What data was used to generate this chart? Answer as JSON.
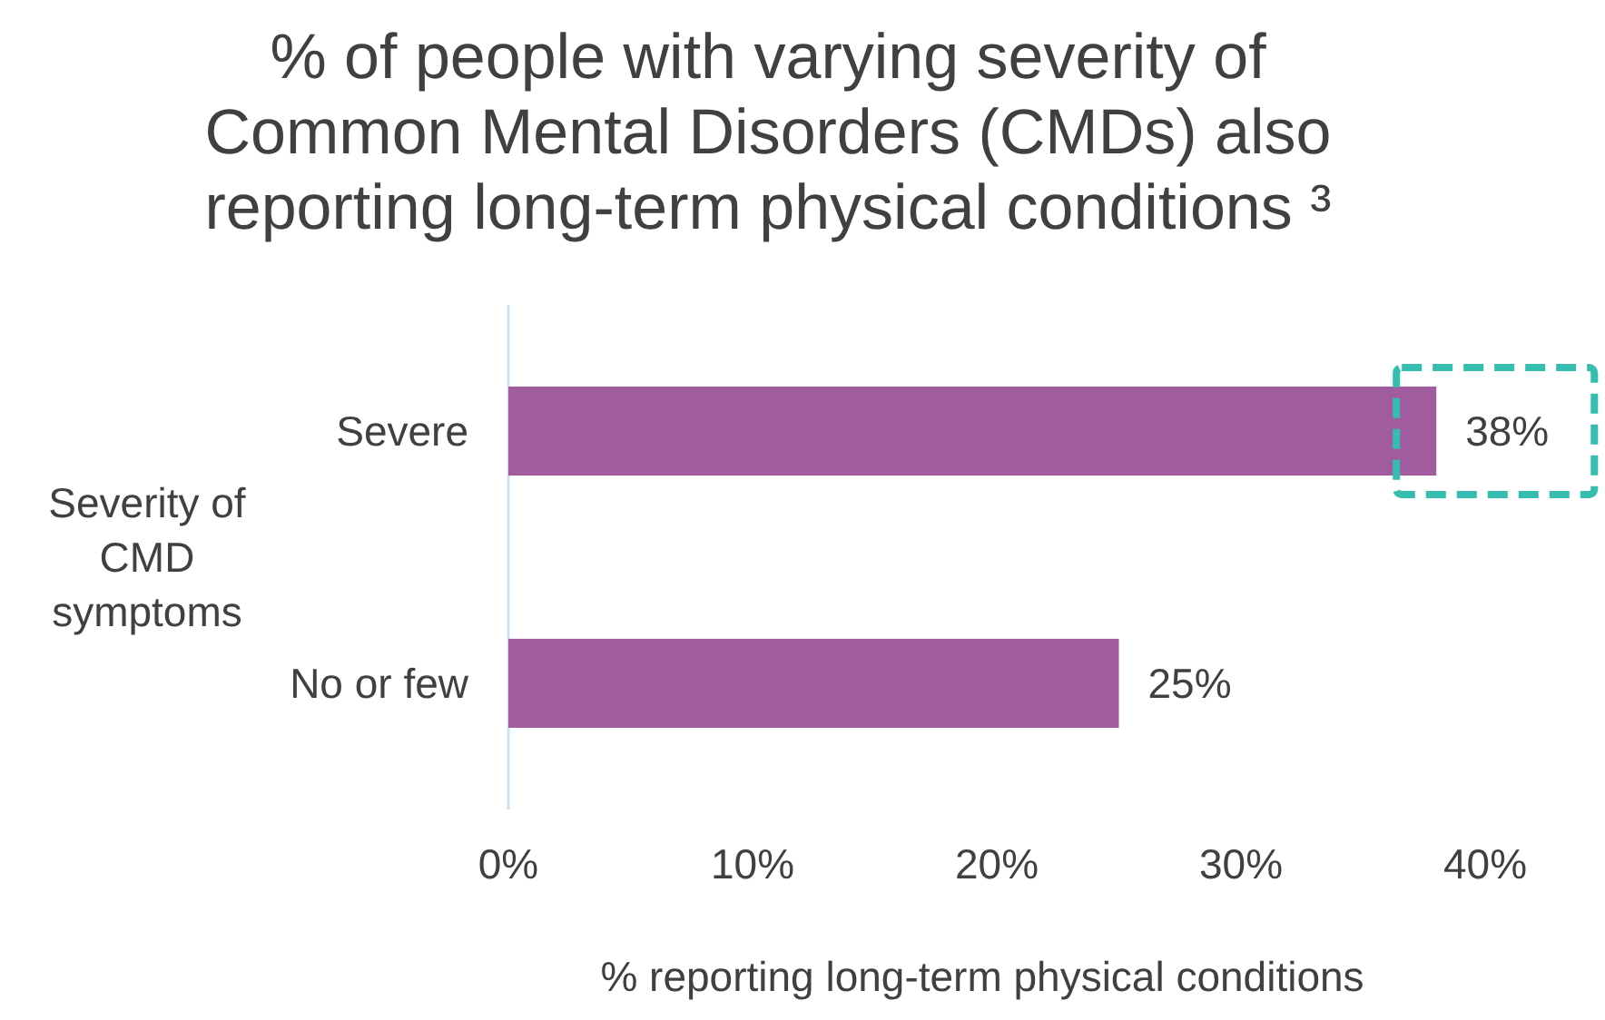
{
  "chart_data": {
    "type": "bar",
    "orientation": "horizontal",
    "title": "% of people with varying severity of Common Mental Disorders (CMDs) also reporting long-term physical conditions ³",
    "xlabel": "% reporting long-term physical conditions",
    "ylabel": "Severity of CMD symptoms",
    "categories": [
      "Severe",
      "No or few"
    ],
    "values": [
      38,
      25
    ],
    "color": "#a15b9f",
    "xlim": [
      0,
      40
    ],
    "xticks": [
      {
        "value": 0,
        "label": "0%"
      },
      {
        "value": 10,
        "label": "10%"
      },
      {
        "value": 20,
        "label": "20%"
      },
      {
        "value": 30,
        "label": "30%"
      },
      {
        "value": 40,
        "label": "40%"
      }
    ],
    "value_labels": [
      "38%",
      "25%"
    ]
  }
}
